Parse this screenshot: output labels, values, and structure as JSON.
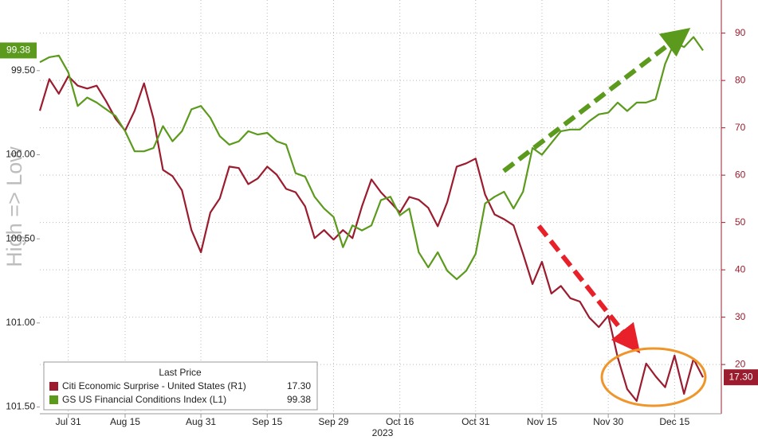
{
  "chart_data": {
    "type": "line",
    "y_axis_label": "High => Low",
    "x_axis_label": "2023",
    "legend_title": "Last Price",
    "categories": [
      null,
      null,
      null,
      "Jul 31",
      null,
      null,
      null,
      null,
      null,
      "Aug 15",
      null,
      null,
      null,
      null,
      null,
      null,
      null,
      "Aug 31",
      null,
      null,
      null,
      null,
      null,
      null,
      "Sep 15",
      null,
      null,
      null,
      null,
      null,
      null,
      "Sep 29",
      null,
      null,
      null,
      null,
      null,
      null,
      "Oct 16",
      null,
      null,
      null,
      null,
      null,
      null,
      null,
      "Oct 31",
      null,
      null,
      null,
      null,
      null,
      null,
      "Nov 15",
      null,
      null,
      null,
      null,
      null,
      null,
      "Nov 30",
      null,
      null,
      null,
      null,
      null,
      null,
      "Dec 15",
      null,
      null,
      null
    ],
    "series": [
      {
        "name": "Citi Economic Surprise - United States (R1)",
        "color": "#9b1c2e",
        "axis": "y2",
        "last_label": "17.30",
        "values": [
          73.6,
          80.3,
          77.2,
          80.9,
          78.9,
          78.3,
          78.9,
          75.6,
          71.9,
          69.4,
          73.6,
          79.4,
          71.9,
          61.1,
          59.8,
          56.8,
          48.4,
          43.7,
          52.1,
          55.1,
          61.8,
          61.5,
          58.1,
          59.3,
          61.8,
          60.1,
          57.1,
          56.4,
          53.4,
          46.7,
          48.4,
          46.4,
          48.4,
          46.7,
          53.4,
          59.1,
          56.4,
          54.3,
          52.1,
          55.4,
          54.8,
          53.1,
          49.2,
          54.3,
          61.8,
          62.5,
          63.5,
          55.9,
          51.7,
          50.7,
          49.4,
          43.4,
          37.0,
          41.7,
          35.0,
          36.6,
          34.0,
          33.3,
          29.9,
          27.9,
          30.3,
          21.5,
          14.8,
          12.3,
          20.2,
          17.5,
          15.2,
          21.9,
          13.8,
          21.2,
          17.3
        ]
      },
      {
        "name": "GS US Financial Conditions Index (L1)",
        "color": "#5b9a1c",
        "last_label": "99.38",
        "values": [
          99.45,
          99.42,
          99.41,
          99.51,
          99.71,
          99.66,
          99.69,
          99.73,
          99.77,
          99.86,
          99.98,
          99.98,
          99.96,
          99.83,
          99.92,
          99.86,
          99.73,
          99.71,
          99.78,
          99.89,
          99.94,
          99.92,
          99.86,
          99.88,
          99.87,
          99.92,
          99.94,
          100.11,
          100.13,
          100.25,
          100.32,
          100.37,
          100.55,
          100.42,
          100.45,
          100.42,
          100.27,
          100.25,
          100.36,
          100.32,
          100.58,
          100.67,
          100.58,
          100.69,
          100.74,
          100.69,
          100.59,
          100.29,
          100.25,
          100.22,
          100.32,
          100.22,
          99.96,
          100.0,
          99.93,
          99.86,
          99.85,
          99.85,
          99.8,
          99.76,
          99.75,
          99.69,
          99.74,
          99.69,
          99.69,
          99.67,
          99.46,
          99.33,
          99.36,
          99.3,
          99.38
        ]
      }
    ],
    "ylim": [
      101.54,
      99.08
    ],
    "yticks": [
      {
        "value": 99.5,
        "label": "99.50"
      },
      {
        "value": 100,
        "label": "100.00"
      },
      {
        "value": 100.5,
        "label": "100.50"
      },
      {
        "value": 101,
        "label": "101.00"
      },
      {
        "value": 101.5,
        "label": "101.50"
      }
    ],
    "y2lim": [
      9.6,
      97
    ],
    "y2ticks": [
      20,
      30,
      40,
      50,
      60,
      70,
      80,
      90
    ],
    "grid": true
  }
}
